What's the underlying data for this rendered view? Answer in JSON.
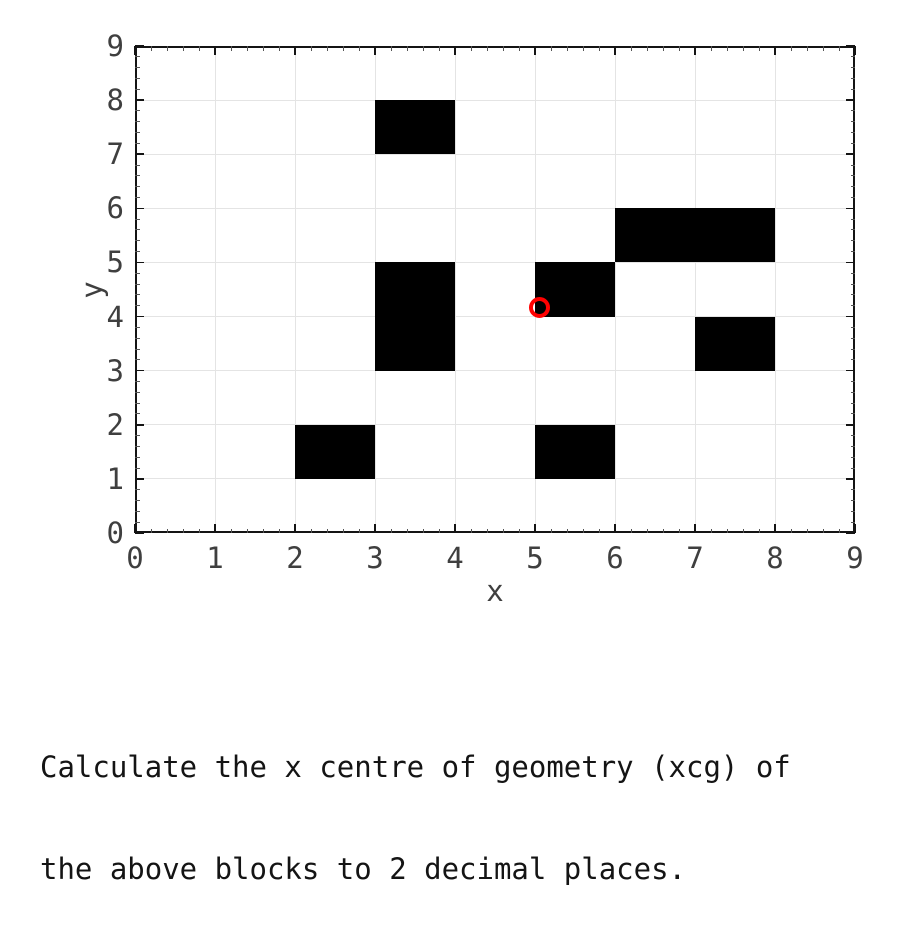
{
  "chart_data": {
    "type": "blocks-grid",
    "title": "",
    "xlabel": "x",
    "ylabel": "y",
    "xlim": [
      0,
      9
    ],
    "ylim": [
      0,
      9
    ],
    "x_ticks": [
      0,
      1,
      2,
      3,
      4,
      5,
      6,
      7,
      8,
      9
    ],
    "y_ticks": [
      0,
      1,
      2,
      3,
      4,
      5,
      6,
      7,
      8,
      9
    ],
    "minor_tick_step": 0.2,
    "grid": "major",
    "grid_color": "#e4e4e4",
    "axis_color": "#141414",
    "tick_label_color": "#3f3f3f",
    "block_color": "#000000",
    "blocks": [
      {
        "x": 3,
        "y": 7,
        "w": 1,
        "h": 1
      },
      {
        "x": 3,
        "y": 3,
        "w": 1,
        "h": 2
      },
      {
        "x": 6,
        "y": 5,
        "w": 2,
        "h": 1
      },
      {
        "x": 5,
        "y": 4,
        "w": 1,
        "h": 1
      },
      {
        "x": 7,
        "y": 3,
        "w": 1,
        "h": 1
      },
      {
        "x": 2,
        "y": 1,
        "w": 1,
        "h": 1
      },
      {
        "x": 5,
        "y": 1,
        "w": 1,
        "h": 1
      }
    ],
    "marker": {
      "shape": "open-circle",
      "x": 5.06,
      "y": 4.17,
      "color": "#ff0000"
    }
  },
  "question": {
    "lines": [
      "Calculate the x centre of geometry (xcg) of",
      "the above blocks to 2 decimal places."
    ]
  }
}
